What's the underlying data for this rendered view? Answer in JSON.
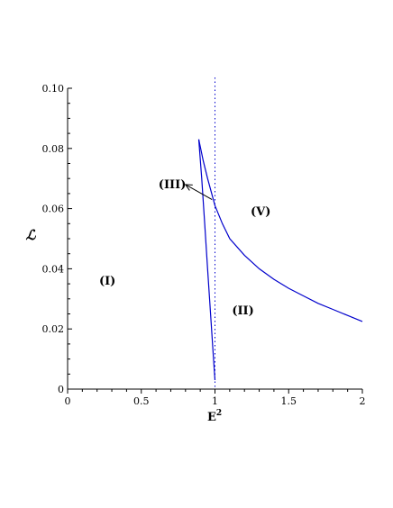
{
  "chart_data": {
    "type": "line",
    "xlabel": "E",
    "xlabel_superscript": "2",
    "ylabel": "ℒ",
    "xlim": [
      0,
      2
    ],
    "ylim": [
      0,
      0.1
    ],
    "x_ticks": [
      0,
      0.5,
      1,
      1.5,
      2
    ],
    "x_tick_labels": [
      "0",
      "0.5",
      "1",
      "1.5",
      "2"
    ],
    "y_ticks": [
      0,
      0.02,
      0.04,
      0.06,
      0.08,
      0.1
    ],
    "y_tick_labels": [
      "0",
      "0.02",
      "0.04",
      "0.06",
      "0.08",
      "0.10"
    ],
    "grid": false,
    "series": [
      {
        "color": "#0000cc",
        "x": [
          0.89,
          0.91,
          0.93,
          0.95,
          0.97,
          0.99,
          1.0
        ],
        "y": [
          0.083,
          0.07,
          0.055,
          0.04,
          0.025,
          0.01,
          0.003
        ]
      },
      {
        "color": "#0000cc",
        "x": [
          0.89,
          0.92,
          0.95,
          1.0,
          1.05,
          1.1,
          1.2,
          1.3,
          1.4,
          1.5,
          1.6,
          1.7,
          1.8,
          1.9,
          2.0
        ],
        "y": [
          0.083,
          0.076,
          0.07,
          0.061,
          0.055,
          0.05,
          0.0445,
          0.04,
          0.0365,
          0.0335,
          0.031,
          0.0285,
          0.0265,
          0.0245,
          0.0225
        ]
      }
    ],
    "vertical_line": {
      "x": 1,
      "style": "dotted",
      "color": "#0000cc"
    },
    "annotations": [
      {
        "text": "(I)",
        "x": 0.27,
        "y": 0.036
      },
      {
        "text": "(II)",
        "x": 1.19,
        "y": 0.026
      },
      {
        "text": "(III)",
        "x": 0.71,
        "y": 0.068
      },
      {
        "text": "(V)",
        "x": 1.31,
        "y": 0.059
      }
    ],
    "arrow": {
      "from": [
        0.98,
        0.063
      ],
      "to": [
        0.8,
        0.068
      ],
      "color": "#000000"
    }
  }
}
